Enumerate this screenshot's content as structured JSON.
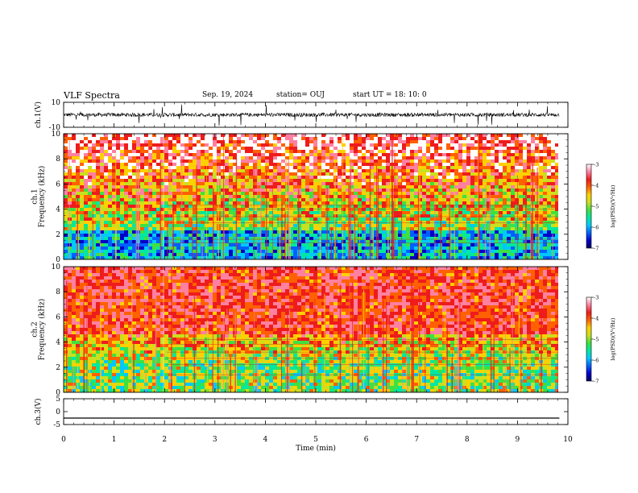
{
  "header": {
    "title": "VLF Spectra",
    "date": "Sep. 19, 2024",
    "station": "station= OUJ",
    "start": "start  UT =   18: 10: 0"
  },
  "chart_data": [
    {
      "type": "line",
      "name": "waveform-ch1",
      "ylabel": "ch.1(V)",
      "ylim": [
        -10,
        10
      ],
      "yticks": [
        "10",
        "-10"
      ],
      "xlim": [
        0,
        9.83
      ],
      "baseline_value": 0,
      "color": "#000000"
    },
    {
      "type": "heatmap",
      "name": "spectrogram-ch1",
      "ylabel": "ch.1\nFrequency (kHz)",
      "ylim": [
        0,
        10
      ],
      "yticks": [
        "0",
        "2",
        "4",
        "6",
        "8",
        "10"
      ],
      "xlim": [
        0,
        9.83
      ],
      "colorbar": {
        "label": "log(PSD)(V²/Hz)",
        "range": [
          -7,
          -3
        ],
        "ticks": [
          "-3",
          "-4",
          "-5",
          "-6",
          "-7"
        ]
      }
    },
    {
      "type": "heatmap",
      "name": "spectrogram-ch2",
      "ylabel": "ch.2\nFrequency (kHz)",
      "ylim": [
        0,
        10
      ],
      "yticks": [
        "0",
        "2",
        "4",
        "6",
        "8",
        "10"
      ],
      "xlim": [
        0,
        9.83
      ],
      "colorbar": {
        "label": "log(PSD)(V²/Hz)",
        "range": [
          -7,
          -3
        ],
        "ticks": [
          "-3",
          "-4",
          "-5",
          "-6",
          "-7"
        ]
      }
    },
    {
      "type": "line",
      "name": "waveform-ch3",
      "ylabel": "ch.3(V)",
      "ylim": [
        -5,
        5
      ],
      "yticks": [
        "5",
        "0",
        "-5"
      ],
      "xlim": [
        0,
        9.83
      ],
      "baseline_value": -2.5,
      "color": "#000000"
    }
  ],
  "x_axis": {
    "label": "Time (min)",
    "range": [
      0,
      10
    ],
    "ticks": [
      "0",
      "1",
      "2",
      "3",
      "4",
      "5",
      "6",
      "7",
      "8",
      "9",
      "10"
    ]
  },
  "colormap": [
    "#000060",
    "#0000c8",
    "#0060ff",
    "#00c8ff",
    "#00e8a0",
    "#40e040",
    "#c8e020",
    "#ffd000",
    "#ff6000",
    "#ee1c1c",
    "#ff80a0",
    "#ffffff"
  ]
}
